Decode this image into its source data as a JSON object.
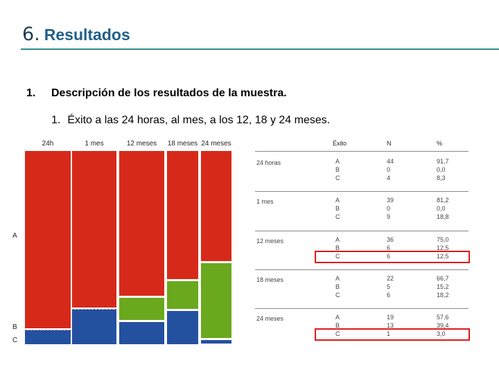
{
  "title": {
    "number": "6.",
    "text": "Resultados"
  },
  "item1": {
    "number": "1.",
    "text": "Descripción de los resultados de la muestra."
  },
  "item2": {
    "number": "1.",
    "text": "Éxito a las 24 horas, al mes, a los 12, 18 y 24 meses."
  },
  "mosaic": {
    "columns": [
      "24h",
      "1 mes",
      "12 meses",
      "18 meses",
      "24 meses"
    ],
    "row_labels": [
      "A",
      "B",
      "C"
    ],
    "colors": {
      "A": "#d7291a",
      "B": "#6aa81e",
      "C": "#2450a0"
    },
    "proportions": [
      {
        "A": 0.917,
        "B": 0.0,
        "C": 0.083
      },
      {
        "A": 0.812,
        "B": 0.0,
        "C": 0.188
      },
      {
        "A": 0.75,
        "B": 0.125,
        "C": 0.125
      },
      {
        "A": 0.667,
        "B": 0.152,
        "C": 0.182
      },
      {
        "A": 0.576,
        "B": 0.394,
        "C": 0.03
      }
    ]
  },
  "table": {
    "headers": [
      "Éxito",
      "N",
      "%"
    ],
    "groups": [
      {
        "label": "24 horas",
        "rows": [
          [
            "A",
            "44",
            "91,7"
          ],
          [
            "B",
            "0",
            "0,0"
          ],
          [
            "C",
            "4",
            "8,3"
          ]
        ]
      },
      {
        "label": "1 mes",
        "rows": [
          [
            "A",
            "39",
            "81,2"
          ],
          [
            "B",
            "0",
            "0,0"
          ],
          [
            "C",
            "9",
            "18,8"
          ]
        ]
      },
      {
        "label": "12 meses",
        "rows": [
          [
            "A",
            "36",
            "75,0"
          ],
          [
            "B",
            "6",
            "12,5"
          ],
          [
            "C",
            "6",
            "12,5"
          ]
        ]
      },
      {
        "label": "18 meses",
        "rows": [
          [
            "A",
            "22",
            "66,7"
          ],
          [
            "B",
            "5",
            "15,2"
          ],
          [
            "C",
            "6",
            "18,2"
          ]
        ]
      },
      {
        "label": "24 meses",
        "rows": [
          [
            "A",
            "19",
            "57,6"
          ],
          [
            "B",
            "13",
            "39,4"
          ],
          [
            "C",
            "1",
            "3,0"
          ]
        ]
      }
    ],
    "highlight_color": "#e01818"
  }
}
